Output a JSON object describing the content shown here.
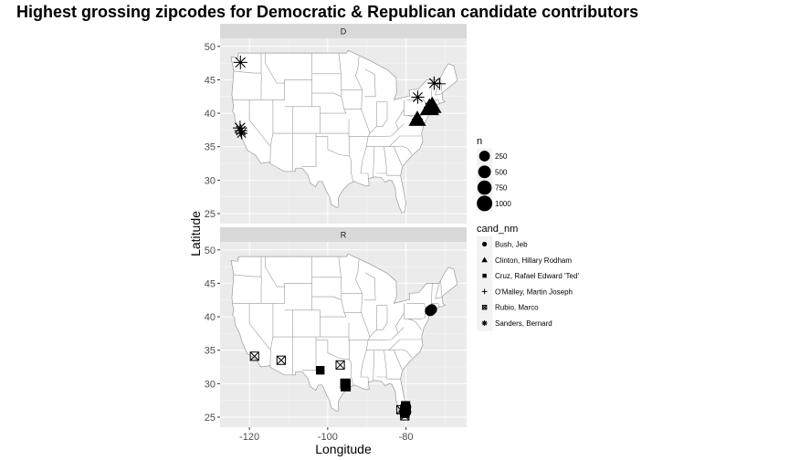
{
  "chart_data": {
    "type": "scatter",
    "title": "Highest grossing zipcodes for Democratic & Republican candidate contributors",
    "xlabel": "Longitude",
    "ylabel": "Latitude",
    "xlim": [
      -127.5,
      -64.5
    ],
    "ylim": [
      23.5,
      51.2
    ],
    "xticks": [
      -120,
      -100,
      -80
    ],
    "xtick_labels": [
      "-120",
      "-100",
      "-80"
    ],
    "yticks": [
      25,
      30,
      35,
      40,
      45,
      50
    ],
    "ytick_labels": [
      "25",
      "30",
      "35",
      "40",
      "45",
      "50"
    ],
    "facets": [
      "D",
      "R"
    ],
    "grid": true,
    "legend_placement": "right",
    "size_legend": {
      "title": "n",
      "values": [
        250,
        500,
        750,
        1000
      ],
      "labels": [
        "250",
        "500",
        "750",
        "1000"
      ]
    },
    "shape_legend": {
      "title": "cand_nm",
      "entries": [
        {
          "label": "Bush, Jeb",
          "shape": "circle"
        },
        {
          "label": "Clinton, Hillary Rodham",
          "shape": "triangle"
        },
        {
          "label": "Cruz, Rafael Edward 'Ted'",
          "shape": "square"
        },
        {
          "label": "O'Malley, Martin Joseph",
          "shape": "plus"
        },
        {
          "label": "Rubio, Marco",
          "shape": "square-x"
        },
        {
          "label": "Sanders, Bernard",
          "shape": "asterisk"
        }
      ]
    },
    "points": [
      {
        "facet": "D",
        "cand": "Sanders, Bernard",
        "lon": -122.3,
        "lat": 47.6,
        "n": 380
      },
      {
        "facet": "D",
        "cand": "Sanders, Bernard",
        "lon": -122.4,
        "lat": 37.8,
        "n": 450
      },
      {
        "facet": "D",
        "cand": "Sanders, Bernard",
        "lon": -122.2,
        "lat": 37.4,
        "n": 300
      },
      {
        "facet": "D",
        "cand": "Sanders, Bernard",
        "lon": -122.0,
        "lat": 37.0,
        "n": 200
      },
      {
        "facet": "D",
        "cand": "Sanders, Bernard",
        "lon": -77.0,
        "lat": 42.4,
        "n": 320
      },
      {
        "facet": "D",
        "cand": "Sanders, Bernard",
        "lon": -73.9,
        "lat": 40.9,
        "n": 220
      },
      {
        "facet": "D",
        "cand": "Sanders, Bernard",
        "lon": -72.8,
        "lat": 44.5,
        "n": 350
      },
      {
        "facet": "D",
        "cand": "O'Malley, Martin Joseph",
        "lon": -71.4,
        "lat": 44.4,
        "n": 280
      },
      {
        "facet": "D",
        "cand": "O'Malley, Martin Joseph",
        "lon": -77.1,
        "lat": 39.1,
        "n": 200
      },
      {
        "facet": "D",
        "cand": "Clinton, Hillary Rodham",
        "lon": -77.1,
        "lat": 39.1,
        "n": 700
      },
      {
        "facet": "D",
        "cand": "Clinton, Hillary Rodham",
        "lon": -74.0,
        "lat": 40.8,
        "n": 1000
      },
      {
        "facet": "D",
        "cand": "Clinton, Hillary Rodham",
        "lon": -73.3,
        "lat": 41.1,
        "n": 900
      },
      {
        "facet": "R",
        "cand": "Bush, Jeb",
        "lon": -73.8,
        "lat": 40.9,
        "n": 250
      },
      {
        "facet": "R",
        "cand": "Bush, Jeb",
        "lon": -73.4,
        "lat": 41.1,
        "n": 220
      },
      {
        "facet": "R",
        "cand": "Bush, Jeb",
        "lon": -80.2,
        "lat": 25.8,
        "n": 400
      },
      {
        "facet": "R",
        "cand": "Bush, Jeb",
        "lon": -80.1,
        "lat": 26.5,
        "n": 300
      },
      {
        "facet": "R",
        "cand": "Cruz, Rafael Edward 'Ted'",
        "lon": -101.9,
        "lat": 32.0,
        "n": 180
      },
      {
        "facet": "R",
        "cand": "Cruz, Rafael Edward 'Ted'",
        "lon": -95.5,
        "lat": 30.0,
        "n": 400
      },
      {
        "facet": "R",
        "cand": "Cruz, Rafael Edward 'Ted'",
        "lon": -95.4,
        "lat": 29.6,
        "n": 380
      },
      {
        "facet": "R",
        "cand": "Cruz, Rafael Edward 'Ted'",
        "lon": -80.3,
        "lat": 25.6,
        "n": 300
      },
      {
        "facet": "R",
        "cand": "Rubio, Marco",
        "lon": -118.7,
        "lat": 34.1,
        "n": 160
      },
      {
        "facet": "R",
        "cand": "Rubio, Marco",
        "lon": -111.9,
        "lat": 33.5,
        "n": 160
      },
      {
        "facet": "R",
        "cand": "Rubio, Marco",
        "lon": -96.8,
        "lat": 32.8,
        "n": 160
      },
      {
        "facet": "R",
        "cand": "Rubio, Marco",
        "lon": -95.4,
        "lat": 29.9,
        "n": 200
      },
      {
        "facet": "R",
        "cand": "Rubio, Marco",
        "lon": -81.3,
        "lat": 26.1,
        "n": 160
      },
      {
        "facet": "R",
        "cand": "Rubio, Marco",
        "lon": -80.1,
        "lat": 26.7,
        "n": 160
      },
      {
        "facet": "R",
        "cand": "Rubio, Marco",
        "lon": -80.3,
        "lat": 25.2,
        "n": 160
      }
    ]
  },
  "colors": {
    "panel_bg": "#ebebeb",
    "strip_bg": "#d9d9d9",
    "grid_major": "#ffffff",
    "state_fill": "#ffffff",
    "state_border": "#999999",
    "point": "#000000",
    "legend_key_bg": "#f2f2f2"
  }
}
